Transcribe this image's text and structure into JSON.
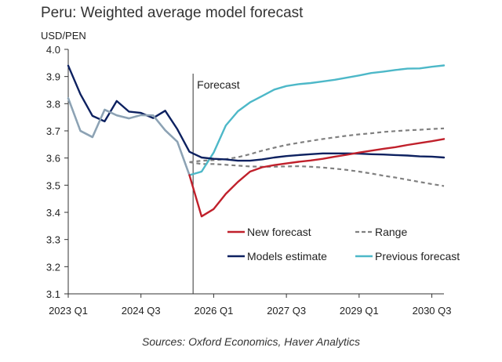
{
  "chart_data": {
    "type": "line",
    "title": "Peru: Weighted average model forecast",
    "ylabel": "USD/PEN",
    "ylim": [
      3.1,
      4.0
    ],
    "yticks": [
      "4.0",
      "3.9",
      "3.8",
      "3.7",
      "3.6",
      "3.5",
      "3.4",
      "3.3",
      "3.2",
      "3.1"
    ],
    "x_range": [
      0,
      31
    ],
    "xticks": [
      {
        "x": 0,
        "label": "2023 Q1"
      },
      {
        "x": 6,
        "label": "2024 Q3"
      },
      {
        "x": 12,
        "label": "2026 Q1"
      },
      {
        "x": 18,
        "label": "2027 Q3"
      },
      {
        "x": 24,
        "label": "2029 Q1"
      },
      {
        "x": 30,
        "label": "2030 Q3"
      }
    ],
    "forecast_x": 10.3,
    "forecast_label": "Forecast",
    "source": "Sources: Oxford Economics, Haver Analytics",
    "series": [
      {
        "name": "Range upper",
        "legend": false,
        "color": "#808080",
        "dash": true,
        "x": [
          10,
          11,
          12,
          13,
          14,
          15,
          16,
          17,
          18,
          19,
          20,
          21,
          22,
          23,
          24,
          25,
          26,
          27,
          28,
          29,
          30,
          31
        ],
        "values": [
          3.585,
          3.59,
          3.592,
          3.596,
          3.603,
          3.614,
          3.627,
          3.638,
          3.648,
          3.656,
          3.663,
          3.67,
          3.676,
          3.682,
          3.687,
          3.691,
          3.696,
          3.699,
          3.702,
          3.704,
          3.707,
          3.709
        ]
      },
      {
        "name": "Range lower",
        "legend": false,
        "color": "#808080",
        "dash": true,
        "x": [
          10,
          11,
          12,
          13,
          14,
          15,
          16,
          17,
          18,
          19,
          20,
          21,
          22,
          23,
          24,
          25,
          26,
          27,
          28,
          29,
          30,
          31
        ],
        "values": [
          3.585,
          3.578,
          3.578,
          3.575,
          3.572,
          3.569,
          3.568,
          3.568,
          3.569,
          3.57,
          3.568,
          3.565,
          3.561,
          3.556,
          3.55,
          3.543,
          3.535,
          3.528,
          3.52,
          3.512,
          3.504,
          3.497
        ]
      },
      {
        "name": "Previous forecast",
        "legend": true,
        "color": "#4db8c8",
        "dash": false,
        "x": [
          0,
          1,
          2,
          3,
          4,
          5,
          6,
          7,
          8,
          9,
          10,
          11,
          12,
          13,
          14,
          15,
          16,
          17,
          18,
          19,
          20,
          21,
          22,
          23,
          24,
          25,
          26,
          27,
          28,
          29,
          30,
          31
        ],
        "values": [
          3.82,
          3.7,
          3.677,
          3.778,
          3.757,
          3.746,
          3.758,
          3.757,
          3.702,
          3.66,
          3.537,
          3.55,
          3.62,
          3.72,
          3.772,
          3.805,
          3.828,
          3.852,
          3.865,
          3.872,
          3.876,
          3.882,
          3.888,
          3.896,
          3.904,
          3.913,
          3.918,
          3.924,
          3.929,
          3.93,
          3.936,
          3.941
        ]
      },
      {
        "name": "Models estimate",
        "legend": true,
        "color": "#0d2160",
        "dash": false,
        "x": [
          0,
          1,
          2,
          3,
          4,
          5,
          6,
          7,
          8,
          9,
          10,
          11,
          12,
          13,
          14,
          15,
          16,
          17,
          18,
          19,
          20,
          21,
          22,
          23,
          24,
          25,
          26,
          27,
          28,
          29,
          30,
          31
        ],
        "values": [
          3.94,
          3.835,
          3.755,
          3.735,
          3.81,
          3.771,
          3.766,
          3.747,
          3.774,
          3.706,
          3.623,
          3.602,
          3.597,
          3.595,
          3.59,
          3.59,
          3.595,
          3.602,
          3.607,
          3.611,
          3.614,
          3.617,
          3.617,
          3.617,
          3.616,
          3.614,
          3.613,
          3.611,
          3.609,
          3.606,
          3.605,
          3.602
        ]
      },
      {
        "name": "Previous forecast (history)",
        "legend": false,
        "color": "#8fa1b3",
        "dash": false,
        "x": [
          0,
          1,
          2,
          3,
          4,
          5,
          6,
          7,
          8,
          9,
          10
        ],
        "values": [
          3.82,
          3.7,
          3.677,
          3.778,
          3.757,
          3.746,
          3.758,
          3.757,
          3.702,
          3.66,
          3.537
        ]
      },
      {
        "name": "New forecast",
        "legend": true,
        "color": "#c0202b",
        "dash": false,
        "x": [
          10,
          11,
          12,
          13,
          14,
          15,
          16,
          17,
          18,
          19,
          20,
          21,
          22,
          23,
          24,
          25,
          26,
          27,
          28,
          29,
          30,
          31
        ],
        "values": [
          3.537,
          3.385,
          3.412,
          3.468,
          3.512,
          3.55,
          3.566,
          3.574,
          3.58,
          3.586,
          3.591,
          3.597,
          3.605,
          3.612,
          3.62,
          3.627,
          3.634,
          3.64,
          3.648,
          3.655,
          3.662,
          3.67
        ]
      }
    ],
    "legend": [
      {
        "label": "New forecast",
        "color": "#c0202b",
        "dash": false
      },
      {
        "label": "Range",
        "color": "#808080",
        "dash": true
      },
      {
        "label": "Models estimate",
        "color": "#0d2160",
        "dash": false
      },
      {
        "label": "Previous forecast",
        "color": "#4db8c8",
        "dash": false
      }
    ]
  }
}
